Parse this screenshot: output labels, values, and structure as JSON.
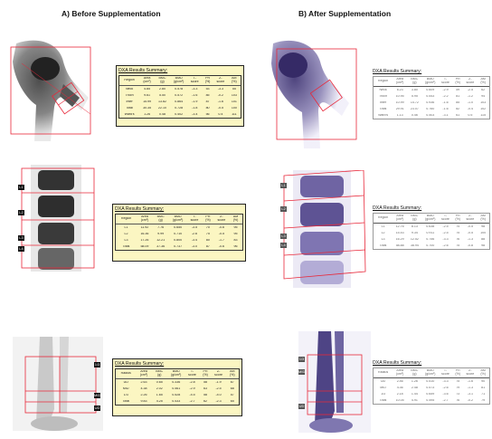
{
  "titles": {
    "before": "A) Before Supplementation",
    "after": "B) After Supplementation"
  },
  "colors": {
    "roi": "#e8283a",
    "panel_before": "#fbf6c2",
    "bone_before": "#3a3a3a",
    "bone_after": "#4a3f7a"
  },
  "panels": [
    {
      "title": "DXA Results Summary:",
      "headers": [
        "Region",
        "Area\n(cm²)",
        "BMC\n(g)",
        "BMD\n(g/cm²)",
        "T-\nscore",
        "PR\n(%)",
        "Z-\nscore",
        "AM\n(%)"
      ],
      "rows": [
        [
          "Neck",
          "4.85",
          "2.80",
          "0.578",
          "-3.3",
          "53",
          "-3.3",
          "55"
        ],
        [
          "Troch",
          "9.61",
          "5.50",
          "0.572",
          "-1.6",
          "85",
          "-0.2",
          "103"
        ],
        [
          "Inter",
          "15.99",
          "13.82",
          "0.864",
          "-1.9",
          "87",
          "-1.6",
          "101"
        ],
        [
          "Total",
          "30.35",
          "22.10",
          "0.728",
          "-1.8",
          "80",
          "-0.5",
          "100"
        ],
        [
          "Ward's",
          "1.26",
          "0.48",
          "0.402",
          "-3.4",
          "56",
          "0.4",
          "111"
        ]
      ]
    },
    {
      "title": "DXA Results Summary:",
      "headers": [
        "Region",
        "Area\n(cm²)",
        "BMC\n(g)",
        "BMD\n(g/cm²)",
        "T-\nscore",
        "PR\n(%)",
        "Z-\nscore",
        "AM\n(%)"
      ],
      "rows": [
        [
          "L1",
          "11.92",
          "7.76",
          "0.650",
          "-3.5",
          "70",
          "-0.6",
          "95"
        ],
        [
          "L2",
          "16.36",
          "9.99",
          "0.710",
          "-2.6",
          "75",
          "-0.5",
          "95"
        ],
        [
          "L3",
          "17.26",
          "12.21",
          "0.800",
          "-3.4",
          "80",
          "-1.7",
          "83"
        ],
        [
          "Total",
          "58.09",
          "37.36",
          "0.737",
          "-3.0",
          "87",
          "-0.6",
          "96"
        ]
      ]
    },
    {
      "title": "DXA Results Summary:",
      "headers": [
        "Radius",
        "Area\n(cm²)",
        "BMC\n(g)",
        "BMD\n(g/cm²)",
        "T-\nscore",
        "PR\n(%)",
        "Z-\nscore",
        "AM\n(%)"
      ],
      "rows": [
        [
          "UD",
          "2.63",
          "0.65",
          "0.336",
          "-2.8",
          "58",
          "-1.9",
          "67"
        ],
        [
          "MID",
          "4.38",
          "2.02",
          "0.461",
          "-2.9",
          "63",
          "-2.5",
          "68"
        ],
        [
          "1/3",
          "2.26",
          "1.65",
          "0.528",
          "-4.5",
          "58",
          "-4.0",
          "57"
        ],
        [
          "Total",
          "9.83",
          "4.25",
          "0.433",
          "-2.7",
          "62",
          "-2.3",
          "65"
        ]
      ]
    },
    {
      "title": "DXA Results Summary:",
      "headers": [
        "Region",
        "Area\n(cm²)",
        "BMC\n(g)",
        "BMD\n(g/cm²)",
        "T-\nscore",
        "PR\n(%)",
        "Z-\nscore",
        "AM\n(%)"
      ],
      "rows": [
        [
          "Neck",
          "6.23",
          "3.80",
          "0.609",
          "-2.9",
          "59",
          "-2.5",
          "62"
        ],
        [
          "Troch",
          "10.95",
          "5.95",
          "0.543",
          "-2.2",
          "81",
          "-1.2",
          "94"
        ],
        [
          "Inter",
          "10.99",
          "14.72",
          "0.936",
          "-1.6",
          "85",
          "-1.0",
          "103"
        ],
        [
          "Total",
          "29.91",
          "23.07",
          "0.760",
          "-1.6",
          "82",
          "-0.4",
          "102"
        ],
        [
          "Ward's",
          "1.13",
          "0.46",
          "0.403",
          "-3.1",
          "61",
          "0.5",
          "115"
        ]
      ]
    },
    {
      "title": "DXA Results Summary:",
      "headers": [
        "Region",
        "Area\n(cm²)",
        "BMC\n(g)",
        "BMD\n(g/cm²)",
        "T-\nscore",
        "PR\n(%)",
        "Z-\nscore",
        "AM\n(%)"
      ],
      "rows": [
        [
          "L1",
          "12.76",
          "8.13",
          "0.638",
          "-2.5",
          "74",
          "-0.5",
          "98"
        ],
        [
          "L2",
          "15.43",
          "9.34",
          "0.911",
          "-2.5",
          "75",
          "-0.5",
          "100"
        ],
        [
          "L3",
          "16.29",
          "12.52",
          "0.756",
          "-3.3",
          "76",
          "-1.3",
          "88"
        ],
        [
          "Total",
          "58.88",
          "38.94",
          "0.700",
          "-2.6",
          "75",
          "-0.8",
          "98"
        ]
      ]
    },
    {
      "title": "DXA Results Summary:",
      "headers": [
        "Radius",
        "Area\n(cm²)",
        "BMC\n(g)",
        "BMD\n(g/cm²)",
        "T-\nscore",
        "PR\n(%)",
        "Z-\nscore",
        "AM\n(%)"
      ],
      "rows": [
        [
          "UD",
          "2.46",
          "1.26",
          "0.510",
          "-3.3",
          "75",
          "-1.6",
          "90"
        ],
        [
          "MID",
          "4.36",
          "2.48",
          "0.573",
          "-2.6",
          "79",
          "-1.3",
          "81"
        ],
        [
          "1/3",
          "2.18",
          "1.44",
          "0.659",
          "-3.6",
          "73",
          "-3.1",
          "71"
        ],
        [
          "Total",
          "10.05",
          "4.91",
          "0.495",
          "-2.7",
          "76",
          "-0.2",
          "79"
        ]
      ]
    }
  ],
  "roi_labels": {
    "spine": [
      "L1",
      "L2",
      "L3",
      "L4"
    ],
    "forearm": [
      "1/3",
      "MID",
      "UD"
    ]
  }
}
